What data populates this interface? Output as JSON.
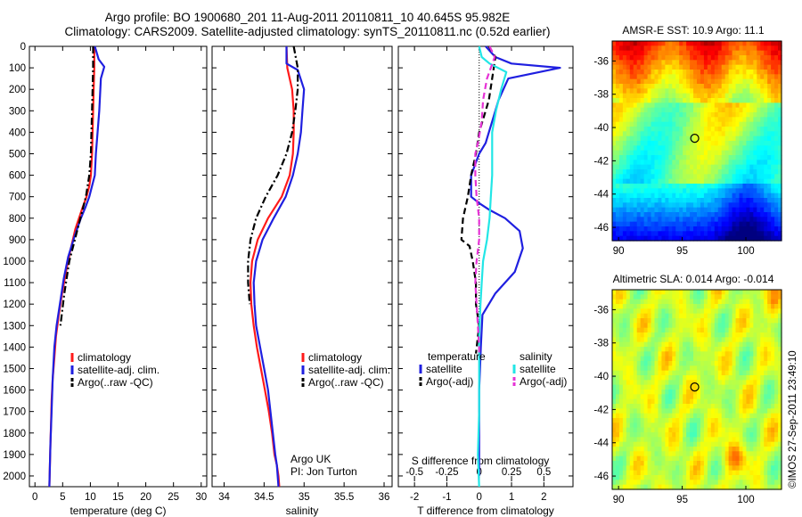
{
  "title_line1": "Argo profile: BO 1900680_201 11-Aug-2011 20110811_10 40.645S 95.982E",
  "title_line2": "Climatology: CARS2009. Satellite-adjusted climatology: synTS_20110811.nc (0.52d earlier)",
  "timestamp": "©IMOS 27-Sep-2011 23:49:10",
  "colors": {
    "climatology": "#ff1a1a",
    "satellite": "#1f1fe0",
    "argo": "#000000",
    "salinity_satellite": "#22e6e6",
    "salinity_argo": "#e632d6"
  },
  "chart_data": [
    {
      "type": "line",
      "name": "temperature_profile",
      "xlabel": "temperature (deg C)",
      "ylabel": "",
      "xlim": [
        -1,
        31
      ],
      "ylim": [
        2050,
        0
      ],
      "xticks": [
        0,
        5,
        10,
        15,
        20,
        25,
        30
      ],
      "yticks": [
        0,
        100,
        200,
        300,
        400,
        500,
        600,
        700,
        800,
        900,
        1000,
        1100,
        1200,
        1300,
        1400,
        1500,
        1600,
        1700,
        1800,
        1900,
        2000
      ],
      "legend": [
        "climatology",
        "satellite-adj. clim.",
        "Argo(..raw -QC)"
      ],
      "series": [
        {
          "name": "climatology",
          "style": "solid",
          "color": "#ff1a1a",
          "x": [
            10.7,
            10.7,
            10.6,
            10.5,
            10.4,
            10.3,
            10.1,
            9.8,
            9.3,
            8.6,
            7.3,
            6.4,
            5.6,
            4.9,
            4.3,
            3.8,
            3.5,
            3.2,
            3.0,
            2.9,
            2.8,
            2.7,
            2.6
          ],
          "y": [
            0,
            100,
            200,
            300,
            400,
            500,
            600,
            650,
            700,
            750,
            850,
            950,
            1050,
            1150,
            1250,
            1350,
            1450,
            1550,
            1650,
            1750,
            1850,
            1950,
            2050
          ]
        },
        {
          "name": "satellite-adj. clim.",
          "style": "solid",
          "color": "#1f1fe0",
          "x": [
            10.8,
            11.5,
            12.5,
            11.9,
            11.6,
            11.3,
            11.0,
            10.8,
            10.3,
            9.8,
            9.1,
            8.3,
            7.2,
            6.0,
            5.2,
            4.5,
            3.9,
            3.5,
            3.2,
            3.0,
            2.8,
            2.7,
            2.6
          ],
          "y": [
            0,
            60,
            95,
            150,
            300,
            400,
            500,
            600,
            650,
            700,
            750,
            800,
            880,
            980,
            1080,
            1200,
            1300,
            1400,
            1550,
            1700,
            1850,
            1950,
            2050
          ]
        },
        {
          "name": "Argo(..raw -QC)",
          "style": "dashdot",
          "color": "#000000",
          "x": [
            10.5,
            10.5,
            10.4,
            10.3,
            10.2,
            10.1,
            9.8,
            9.2,
            8.2,
            7.2,
            6.2,
            5.3,
            4.6
          ],
          "y": [
            0,
            100,
            200,
            300,
            400,
            500,
            600,
            700,
            800,
            900,
            1000,
            1150,
            1300
          ]
        }
      ],
      "annotations": []
    },
    {
      "type": "line",
      "name": "salinity_profile",
      "xlabel": "salinity",
      "ylabel": "",
      "xlim": [
        33.85,
        36.1
      ],
      "ylim": [
        2050,
        0
      ],
      "xticks": [
        34,
        34.5,
        35,
        35.5,
        36
      ],
      "xticklabels": [
        "34",
        "34.5",
        "35",
        "35.5",
        "36"
      ],
      "legend": [
        "climatology",
        "satellite-adj. clim.",
        "Argo(..raw -QC)"
      ],
      "series": [
        {
          "name": "climatology",
          "style": "solid",
          "color": "#ff1a1a",
          "x": [
            34.78,
            34.79,
            34.85,
            34.87,
            34.87,
            34.86,
            34.82,
            34.72,
            34.55,
            34.42,
            34.35,
            34.33,
            34.34,
            34.37,
            34.41,
            34.46,
            34.51,
            34.56,
            34.6,
            34.63,
            34.66,
            34.68,
            34.69
          ],
          "y": [
            0,
            100,
            200,
            300,
            400,
            500,
            600,
            700,
            800,
            900,
            1000,
            1100,
            1200,
            1300,
            1400,
            1500,
            1600,
            1700,
            1800,
            1900,
            1950,
            2000,
            2050
          ]
        },
        {
          "name": "satellite-adj. clim.",
          "style": "solid",
          "color": "#1f1fe0",
          "x": [
            34.78,
            34.78,
            34.92,
            35.0,
            34.98,
            34.96,
            34.92,
            34.86,
            34.77,
            34.62,
            34.48,
            34.4,
            34.37,
            34.38,
            34.4,
            34.45,
            34.5,
            34.55,
            34.58,
            34.61,
            34.64,
            34.66,
            34.68
          ],
          "y": [
            0,
            80,
            110,
            200,
            300,
            400,
            500,
            600,
            700,
            800,
            900,
            1000,
            1100,
            1200,
            1300,
            1400,
            1500,
            1600,
            1700,
            1800,
            1900,
            1950,
            2050
          ]
        },
        {
          "name": "Argo(..raw -QC)",
          "style": "dashdot",
          "color": "#000000",
          "x": [
            34.87,
            34.92,
            34.92,
            34.89,
            34.85,
            34.78,
            34.67,
            34.52,
            34.4,
            34.33,
            34.3,
            34.3,
            34.32
          ],
          "y": [
            0,
            100,
            200,
            300,
            400,
            500,
            600,
            700,
            800,
            900,
            1000,
            1100,
            1200
          ]
        }
      ],
      "annotations": [
        "Argo UK",
        "PI: Jon Turton"
      ]
    },
    {
      "type": "line",
      "name": "difference_profile",
      "xlabel": "T difference from climatology",
      "xlabel2": "S difference from climatology",
      "xlim": [
        -2.5,
        2.9
      ],
      "xlim2": [
        -0.625,
        0.725
      ],
      "ylim": [
        2050,
        0
      ],
      "xticks": [
        -2,
        -1,
        0,
        1,
        2
      ],
      "xticks2": [
        -0.5,
        -0.25,
        0,
        0.25,
        0.5
      ],
      "xticklabels2": [
        "-0.5",
        "-0.25",
        "0",
        "0.25",
        "0.5"
      ],
      "legend_title_left": "temperature",
      "legend_title_right": "salinity",
      "legend": [
        "satellite",
        "Argo(-adj)",
        "satellite",
        "Argo(-adj)"
      ],
      "series": [
        {
          "name": "satellite",
          "group": "temperature",
          "style": "solid",
          "color": "#1f1fe0",
          "x": [
            0.2,
            0.5,
            1.0,
            2.5,
            0.9,
            0.6,
            0.5,
            0.4,
            0.3,
            0.2,
            0.0,
            -0.25,
            -0.25,
            0.0,
            0.3,
            0.8,
            1.25,
            1.35,
            1.1,
            0.5,
            0.1,
            0.05,
            0.0,
            0.0,
            0.0
          ],
          "y": [
            0,
            50,
            80,
            100,
            150,
            250,
            300,
            350,
            400,
            450,
            500,
            600,
            700,
            730,
            760,
            800,
            860,
            940,
            1050,
            1150,
            1250,
            1400,
            1600,
            1800,
            2000
          ]
        },
        {
          "name": "Argo(-adj)",
          "group": "temperature",
          "style": "dashed",
          "color": "#000000",
          "x": [
            0.3,
            0.5,
            0.4,
            0.3,
            0.2,
            0.0,
            -0.1,
            -0.25,
            -0.35,
            -0.5,
            -0.55,
            -0.3,
            -0.2,
            -0.1,
            -0.1,
            0.0,
            -0.1
          ],
          "y": [
            0,
            50,
            150,
            250,
            300,
            400,
            500,
            600,
            700,
            800,
            900,
            930,
            1000,
            1100,
            1200,
            1300,
            1430
          ]
        },
        {
          "name": "satellite",
          "group": "salinity",
          "style": "solid",
          "color": "#22e6e6",
          "x": [
            0.0,
            0.02,
            0.08,
            0.21,
            0.17,
            0.13,
            0.1,
            0.1,
            0.1,
            0.09,
            0.08,
            0.06,
            0.03,
            0.02,
            0.01,
            0.0,
            0.0,
            0.0,
            -0.01,
            0.0
          ],
          "y": [
            0,
            50,
            80,
            120,
            200,
            300,
            400,
            500,
            600,
            700,
            800,
            900,
            1000,
            1100,
            1200,
            1350,
            1500,
            1700,
            1900,
            2050
          ]
        },
        {
          "name": "Argo(-adj)",
          "group": "salinity",
          "style": "dashed",
          "color": "#e632d6",
          "x": [
            0.08,
            0.12,
            0.06,
            0.03,
            0.02,
            -0.01,
            -0.03,
            -0.03,
            -0.02,
            0.0,
            0.0,
            -0.02,
            -0.03,
            -0.02,
            -0.01,
            0.0,
            0.0
          ],
          "y": [
            0,
            50,
            150,
            250,
            350,
            450,
            500,
            600,
            700,
            800,
            900,
            1000,
            1100,
            1200,
            1300,
            1400,
            1430
          ]
        }
      ],
      "annotations": []
    },
    {
      "type": "heatmap",
      "name": "sst_map",
      "title": "AMSR-E SST: 10.9 Argo: 11.1",
      "xlim": [
        89.5,
        102.8
      ],
      "ylim": [
        -46.8,
        -34.8
      ],
      "xticks": [
        90,
        95,
        100
      ],
      "yticks": [
        -36,
        -38,
        -40,
        -42,
        -44,
        -46
      ],
      "marker": {
        "lon": 95.982,
        "lat": -40.645
      }
    },
    {
      "type": "heatmap",
      "name": "sla_map",
      "title": "Altimetric SLA: 0.014 Argo: -0.014",
      "xlim": [
        89.5,
        102.8
      ],
      "ylim": [
        -46.8,
        -34.8
      ],
      "xticks": [
        90,
        95,
        100
      ],
      "yticks": [
        -36,
        -38,
        -40,
        -42,
        -44,
        -46
      ],
      "marker": {
        "lon": 95.982,
        "lat": -40.645
      }
    }
  ]
}
